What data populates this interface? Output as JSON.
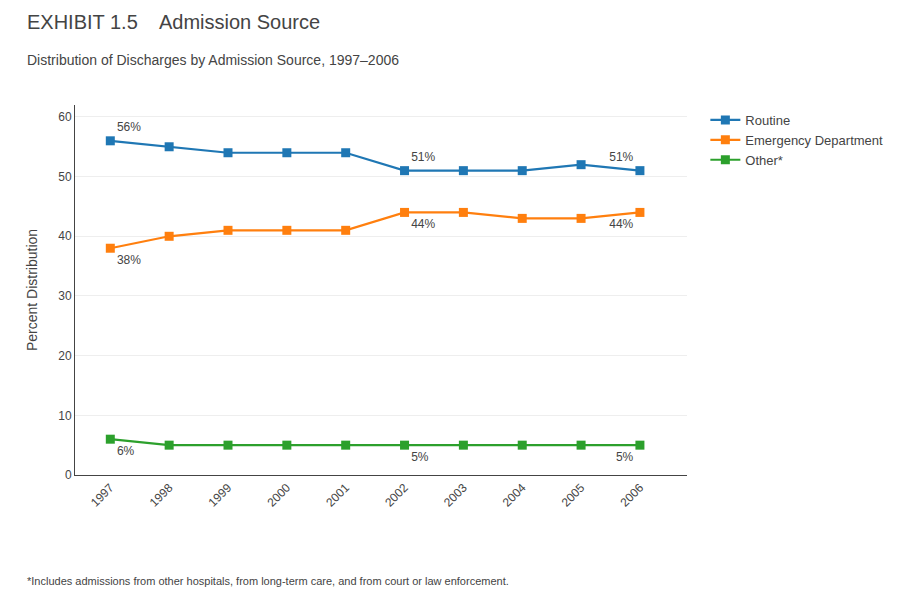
{
  "chart_data": {
    "type": "line",
    "title": "EXHIBIT 1.5    Admission Source",
    "subtitle": "Distribution of Discharges by Admission Source, 1997–2006",
    "footnote": "*Includes admissions from other hospitals, from long-term care, and from court or law enforcement.",
    "y_label": "Percent Distribution",
    "x": [
      1997,
      1998,
      1999,
      2000,
      2001,
      2002,
      2003,
      2004,
      2005,
      2006
    ],
    "series": [
      {
        "name": "Routine",
        "values": [
          56,
          55,
          54,
          54,
          54,
          51,
          51,
          51,
          52,
          51
        ],
        "value_labels": [
          "56%",
          null,
          null,
          null,
          null,
          "51%",
          null,
          null,
          null,
          "51%"
        ]
      },
      {
        "name": "Emergency Department",
        "values": [
          38,
          40,
          41,
          41,
          41,
          44,
          44,
          43,
          43,
          44
        ],
        "value_labels": [
          "38%",
          null,
          null,
          null,
          null,
          "44%",
          null,
          null,
          null,
          "44%"
        ]
      },
      {
        "name": "Other*",
        "values": [
          6,
          5,
          5,
          5,
          5,
          5,
          5,
          5,
          5,
          5
        ],
        "value_labels": [
          "6%",
          null,
          null,
          null,
          null,
          "5%",
          null,
          null,
          null,
          "5%"
        ]
      }
    ],
    "xlim": [
      1996.4,
      2006.8
    ],
    "xticks": [
      1997,
      1998,
      1999,
      2000,
      2001,
      2002,
      2003,
      2004,
      2005,
      2006
    ],
    "ylim": [
      0,
      62
    ],
    "yticks": [
      0,
      10,
      20,
      30,
      40,
      50,
      60
    ],
    "grid": "y",
    "legend": "right",
    "marker": "square",
    "line_style": "solid"
  }
}
